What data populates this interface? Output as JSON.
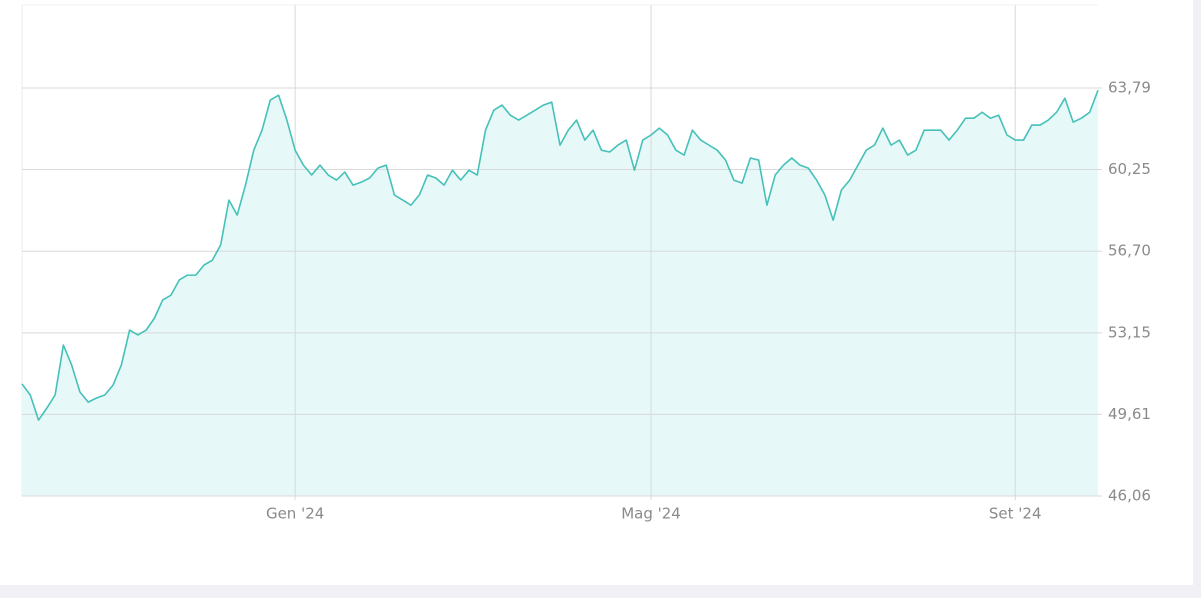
{
  "chart_data": {
    "type": "area",
    "color": "#45c1b9",
    "fill": "#e6f8f8",
    "grid": true,
    "categories": [
      null,
      null,
      null,
      null,
      null,
      null,
      null,
      null,
      null,
      null,
      null,
      null,
      null,
      null,
      null,
      null,
      null,
      null,
      null,
      null,
      null,
      null,
      null,
      null,
      null,
      null,
      null,
      null,
      null,
      null,
      null,
      null,
      null,
      "Gen '24",
      null,
      null,
      null,
      null,
      null,
      null,
      null,
      null,
      null,
      null,
      null,
      null,
      null,
      null,
      null,
      null,
      null,
      null,
      null,
      null,
      null,
      null,
      null,
      null,
      null,
      null,
      null,
      null,
      null,
      null,
      null,
      null,
      null,
      null,
      null,
      null,
      null,
      null,
      null,
      null,
      null,
      null,
      "Mag '24",
      null,
      null,
      null,
      null,
      null,
      null,
      null,
      null,
      null,
      null,
      null,
      null,
      null,
      null,
      null,
      null,
      null,
      null,
      null,
      null,
      null,
      null,
      null,
      null,
      null,
      null,
      null,
      null,
      null,
      null,
      null,
      null,
      null,
      null,
      null,
      null,
      null,
      null,
      null,
      null,
      null,
      null,
      null,
      "Set '24",
      null,
      null,
      null,
      null,
      null,
      null,
      null,
      null,
      null,
      null
    ],
    "values": [
      50.93,
      50.45,
      49.36,
      49.88,
      50.45,
      52.62,
      51.75,
      50.58,
      50.14,
      50.32,
      50.45,
      50.88,
      51.75,
      53.27,
      53.06,
      53.27,
      53.79,
      54.58,
      54.79,
      55.45,
      55.66,
      55.66,
      56.1,
      56.31,
      56.97,
      58.92,
      58.27,
      59.57,
      61.09,
      61.96,
      63.27,
      63.48,
      62.4,
      61.09,
      60.44,
      60.01,
      60.44,
      60.01,
      59.79,
      60.14,
      59.57,
      59.7,
      59.88,
      60.31,
      60.44,
      59.14,
      58.92,
      58.7,
      59.14,
      60.01,
      59.88,
      59.57,
      60.22,
      59.79,
      60.22,
      60.01,
      61.96,
      62.83,
      63.05,
      62.61,
      62.4,
      62.61,
      62.83,
      63.05,
      63.18,
      61.31,
      61.96,
      62.4,
      61.53,
      61.96,
      61.09,
      61.01,
      61.31,
      61.53,
      60.22,
      61.53,
      61.75,
      62.05,
      61.75,
      61.09,
      60.88,
      61.96,
      61.53,
      61.31,
      61.09,
      60.66,
      59.79,
      59.66,
      60.75,
      60.66,
      58.7,
      60.01,
      60.44,
      60.75,
      60.44,
      60.31,
      59.79,
      59.14,
      58.05,
      59.36,
      59.79,
      60.44,
      61.09,
      61.31,
      62.05,
      61.31,
      61.53,
      60.88,
      61.09,
      61.96,
      61.96,
      61.96,
      61.53,
      61.96,
      62.48,
      62.48,
      62.74,
      62.48,
      62.61,
      61.75,
      61.53,
      61.53,
      62.18,
      62.18,
      62.4,
      62.74,
      63.35,
      62.31,
      62.48,
      62.74,
      63.7
    ],
    "ylim": [
      46.06,
      67.4
    ],
    "yticks": [
      {
        "value": 46.06,
        "label": "46,06"
      },
      {
        "value": 49.61,
        "label": "49,61"
      },
      {
        "value": 53.15,
        "label": "53,15"
      },
      {
        "value": 56.7,
        "label": "56,70"
      },
      {
        "value": 60.25,
        "label": "60,25"
      },
      {
        "value": 63.79,
        "label": "63,79"
      }
    ]
  }
}
